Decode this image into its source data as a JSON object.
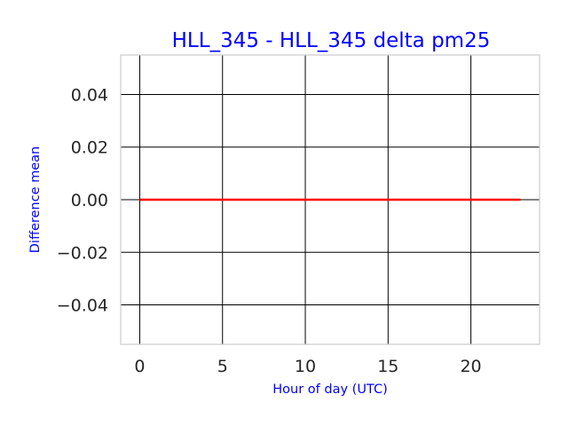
{
  "chart_data": {
    "type": "line",
    "title": "HLL_345 - HLL_345 delta pm25",
    "xlabel": "Hour of day (UTC)",
    "ylabel": "Difference mean",
    "xlim": [
      -1.15,
      24.15
    ],
    "ylim": [
      -0.055,
      0.055
    ],
    "x_ticks": [
      0,
      5,
      10,
      15,
      20
    ],
    "x_tick_labels": [
      "0",
      "5",
      "10",
      "15",
      "20"
    ],
    "y_ticks": [
      0.04,
      0.02,
      0.0,
      -0.02,
      -0.04
    ],
    "y_tick_labels": [
      "0.04",
      "0.02",
      "0.00",
      "−0.02",
      "−0.04"
    ],
    "grid": true,
    "colors": {
      "title": "#0000ff",
      "labels": "#0000ff",
      "line": "#ff0000",
      "grid": "#000000",
      "frame": "#cccccc"
    },
    "series": [
      {
        "x": [
          0,
          1,
          2,
          3,
          4,
          5,
          6,
          7,
          8,
          9,
          10,
          11,
          12,
          13,
          14,
          15,
          16,
          17,
          18,
          19,
          20,
          21,
          22,
          23
        ],
        "values": [
          0,
          0,
          0,
          0,
          0,
          0,
          0,
          0,
          0,
          0,
          0,
          0,
          0,
          0,
          0,
          0,
          0,
          0,
          0,
          0,
          0,
          0,
          0,
          0
        ]
      }
    ]
  }
}
